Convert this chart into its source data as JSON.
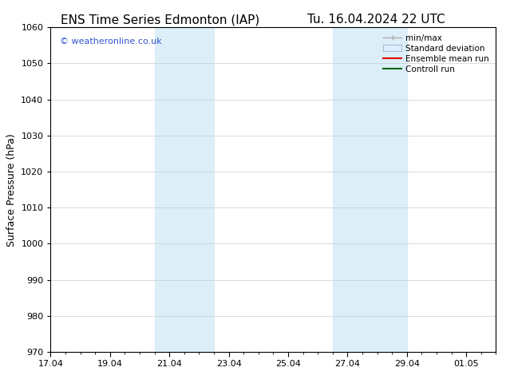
{
  "title_left": "ENS Time Series Edmonton (IAP)",
  "title_right": "Tu. 16.04.2024 22 UTC",
  "ylabel": "Surface Pressure (hPa)",
  "ylim": [
    970,
    1060
  ],
  "yticks": [
    970,
    980,
    990,
    1000,
    1010,
    1020,
    1030,
    1040,
    1050,
    1060
  ],
  "total_days": 15,
  "xtick_labels": [
    "17.04",
    "19.04",
    "21.04",
    "23.04",
    "25.04",
    "27.04",
    "29.04",
    "01.05"
  ],
  "xtick_positions": [
    0,
    2,
    4,
    6,
    8,
    10,
    12,
    14
  ],
  "shaded_regions": [
    {
      "x_start": 3.5,
      "x_end": 5.5,
      "color": "#dceef8"
    },
    {
      "x_start": 9.5,
      "x_end": 12.0,
      "color": "#dceef8"
    }
  ],
  "watermark": "© weatheronline.co.uk",
  "watermark_color": "#3355cc",
  "background_color": "#ffffff",
  "grid_color": "#cccccc",
  "spine_color": "#000000",
  "tick_color": "#000000",
  "title_fontsize": 11,
  "label_fontsize": 9,
  "tick_fontsize": 8,
  "legend_fontsize": 7.5,
  "minmax_color": "#aaaaaa",
  "stddev_facecolor": "#ddeeff",
  "stddev_edgecolor": "#aabbcc",
  "ensemble_color": "#dd0000",
  "control_color": "#006600"
}
